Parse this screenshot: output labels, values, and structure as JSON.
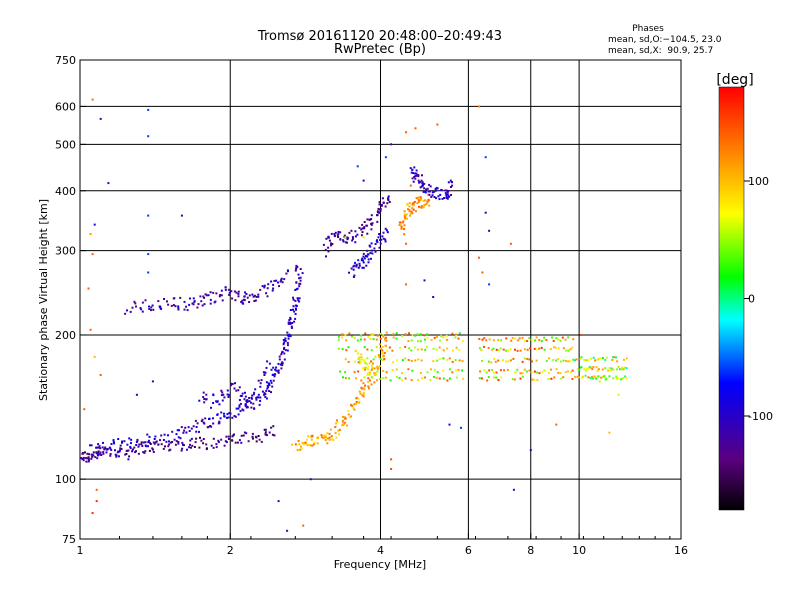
{
  "chart_data": {
    "type": "scatter",
    "title": "Tromsø 20161120 20:48:00–20:49:43",
    "subtitle": "RwPretec (Bp)",
    "xlabel": "Frequency [MHz]",
    "ylabel": "Stationary phase Virtual Height [km]",
    "x_scale": "log2",
    "y_scale": "log",
    "xlim": [
      1,
      16
    ],
    "ylim": [
      75,
      750
    ],
    "x_ticks": [
      1,
      2,
      4,
      6,
      8,
      10,
      16
    ],
    "x_gridlines": [
      2,
      4,
      6,
      8,
      10
    ],
    "y_ticks": [
      75,
      100,
      200,
      300,
      400,
      500,
      600,
      750
    ],
    "y_gridlines": [
      100,
      200,
      300,
      400,
      500,
      600
    ],
    "grid": true,
    "stats": {
      "heading": "Phases",
      "line_o": "mean, sd,O:−104.5, 23.0",
      "line_x": "mean, sd,X:  90.9, 25.7"
    },
    "colorbar": {
      "label": "[deg]",
      "range": [
        -180,
        180
      ],
      "ticks": [
        100,
        0,
        -100
      ],
      "colors": [
        "#000000",
        "#5a0080",
        "#0000ff",
        "#00ffff",
        "#00ff00",
        "#ffff00",
        "#ff8000",
        "#ff0000"
      ]
    },
    "traces": [
      {
        "points": [
          [
            1.0,
            112
          ],
          [
            1.02,
            111
          ],
          [
            1.05,
            112
          ],
          [
            1.08,
            113
          ],
          [
            1.12,
            114
          ],
          [
            1.18,
            115
          ],
          [
            1.22,
            114
          ],
          [
            1.28,
            116
          ],
          [
            1.35,
            117
          ],
          [
            1.42,
            117
          ],
          [
            1.5,
            118
          ],
          [
            1.6,
            118
          ],
          [
            1.7,
            119
          ],
          [
            1.8,
            119
          ],
          [
            1.95,
            120
          ],
          [
            2.05,
            121
          ],
          [
            2.2,
            122
          ],
          [
            2.35,
            124
          ],
          [
            2.45,
            127
          ]
        ],
        "phase": -130
      },
      {
        "points": [
          [
            1.05,
            115
          ],
          [
            1.12,
            116
          ],
          [
            1.2,
            118
          ],
          [
            1.3,
            120
          ],
          [
            1.4,
            121
          ],
          [
            1.55,
            124
          ],
          [
            1.65,
            127
          ],
          [
            1.75,
            130
          ],
          [
            1.85,
            133
          ],
          [
            1.95,
            135
          ],
          [
            2.05,
            138
          ],
          [
            2.15,
            142
          ],
          [
            2.25,
            146
          ],
          [
            2.35,
            150
          ],
          [
            2.4,
            158
          ],
          [
            2.45,
            165
          ],
          [
            2.5,
            172
          ],
          [
            2.55,
            180
          ],
          [
            2.58,
            190
          ],
          [
            2.62,
            200
          ],
          [
            2.66,
            215
          ],
          [
            2.7,
            230
          ],
          [
            2.72,
            245
          ],
          [
            2.74,
            265
          ],
          [
            2.76,
            280
          ]
        ],
        "phase": -100
      },
      {
        "points": [
          [
            1.75,
            150
          ],
          [
            1.85,
            145
          ],
          [
            1.95,
            150
          ],
          [
            2.05,
            155
          ],
          [
            2.12,
            148
          ],
          [
            2.2,
            140
          ],
          [
            2.3,
            160
          ],
          [
            2.4,
            175
          ]
        ],
        "phase": -110
      },
      {
        "points": [
          [
            1.25,
            228
          ],
          [
            1.35,
            230
          ],
          [
            1.45,
            232
          ],
          [
            1.55,
            233
          ],
          [
            1.65,
            232
          ],
          [
            1.75,
            235
          ],
          [
            1.85,
            240
          ],
          [
            1.95,
            245
          ],
          [
            2.05,
            243
          ],
          [
            2.15,
            238
          ],
          [
            2.25,
            240
          ],
          [
            2.35,
            248
          ],
          [
            2.5,
            258
          ],
          [
            2.6,
            268
          ]
        ],
        "phase": -115
      },
      {
        "points": [
          [
            2.7,
            118
          ],
          [
            2.8,
            119
          ],
          [
            2.9,
            120
          ],
          [
            3.0,
            121
          ],
          [
            3.1,
            122
          ],
          [
            3.2,
            124
          ],
          [
            3.3,
            128
          ],
          [
            3.4,
            133
          ],
          [
            3.5,
            140
          ],
          [
            3.6,
            146
          ],
          [
            3.7,
            152
          ],
          [
            3.8,
            160
          ],
          [
            3.9,
            170
          ],
          [
            4.0,
            180
          ],
          [
            4.05,
            190
          ],
          [
            4.1,
            200
          ]
        ],
        "phase": 110
      },
      {
        "points": [
          [
            3.1,
            300
          ],
          [
            3.2,
            315
          ],
          [
            3.3,
            322
          ],
          [
            3.4,
            318
          ],
          [
            3.55,
            322
          ],
          [
            3.7,
            330
          ],
          [
            3.85,
            345
          ],
          [
            3.95,
            360
          ],
          [
            4.05,
            375
          ],
          [
            4.15,
            380
          ]
        ],
        "phase": -125
      },
      {
        "points": [
          [
            3.5,
            270
          ],
          [
            3.6,
            278
          ],
          [
            3.7,
            286
          ],
          [
            3.8,
            295
          ],
          [
            3.9,
            305
          ],
          [
            4.0,
            315
          ],
          [
            4.1,
            330
          ]
        ],
        "phase": -95
      },
      {
        "points": [
          [
            4.4,
            330
          ],
          [
            4.45,
            345
          ],
          [
            4.5,
            360
          ],
          [
            4.6,
            370
          ],
          [
            4.7,
            375
          ],
          [
            4.8,
            378
          ],
          [
            4.9,
            380
          ],
          [
            5.0,
            383
          ]
        ],
        "phase": 120
      },
      {
        "points": [
          [
            4.6,
            440
          ],
          [
            4.7,
            430
          ],
          [
            4.8,
            420
          ],
          [
            4.9,
            410
          ],
          [
            5.0,
            400
          ],
          [
            5.2,
            395
          ],
          [
            5.4,
            390
          ],
          [
            5.5,
            400
          ],
          [
            5.6,
            420
          ]
        ],
        "phase": -105
      },
      {
        "points": [
          [
            3.6,
            180
          ],
          [
            3.7,
            175
          ],
          [
            3.8,
            168
          ],
          [
            3.9,
            165
          ]
        ],
        "phase": 70
      }
    ],
    "bands": [
      {
        "x_range": [
          3.3,
          5.9
        ],
        "heights": [
          162,
          168,
          177,
          187,
          196,
          200
        ],
        "phase": 80
      },
      {
        "x_range": [
          6.3,
          9.8
        ],
        "heights": [
          162,
          168,
          177,
          187,
          196
        ],
        "phase": 95
      },
      {
        "x_range": [
          9.8,
          12.5
        ],
        "heights": [
          163,
          170,
          178
        ],
        "phase": 60
      }
    ],
    "scatter_points": [
      [
        1.06,
        620,
        135
      ],
      [
        1.1,
        565,
        -110
      ],
      [
        1.37,
        590,
        -60
      ],
      [
        1.37,
        520,
        -60
      ],
      [
        1.14,
        415,
        -100
      ],
      [
        1.07,
        340,
        -90
      ],
      [
        1.05,
        325,
        115
      ],
      [
        1.37,
        355,
        -60
      ],
      [
        1.37,
        295,
        -60
      ],
      [
        1.6,
        355,
        -90
      ],
      [
        1.06,
        295,
        140
      ],
      [
        1.04,
        250,
        140
      ],
      [
        1.37,
        270,
        -60
      ],
      [
        1.05,
        205,
        140
      ],
      [
        1.07,
        180,
        100
      ],
      [
        1.1,
        165,
        140
      ],
      [
        1.4,
        160,
        -110
      ],
      [
        1.08,
        95,
        140
      ],
      [
        1.08,
        90,
        160
      ],
      [
        1.06,
        85,
        160
      ],
      [
        1.25,
        110,
        -100
      ],
      [
        2.6,
        78,
        -120
      ],
      [
        3.7,
        420,
        -80
      ],
      [
        3.6,
        450,
        -60
      ],
      [
        4.5,
        530,
        140
      ],
      [
        4.7,
        540,
        140
      ],
      [
        5.2,
        550,
        140
      ],
      [
        6.3,
        600,
        130
      ],
      [
        6.5,
        470,
        -60
      ],
      [
        6.6,
        330,
        -90
      ],
      [
        6.5,
        360,
        -100
      ],
      [
        7.3,
        310,
        140
      ],
      [
        6.3,
        290,
        140
      ],
      [
        6.4,
        270,
        140
      ],
      [
        7.4,
        95,
        -110
      ],
      [
        8.0,
        115,
        -100
      ],
      [
        9.0,
        130,
        140
      ],
      [
        10.1,
        200,
        150
      ],
      [
        11.5,
        125,
        100
      ],
      [
        11.0,
        160,
        60
      ],
      [
        12.0,
        150,
        60
      ],
      [
        4.2,
        110,
        150
      ],
      [
        4.2,
        105,
        150
      ],
      [
        5.5,
        130,
        -90
      ],
      [
        5.8,
        128,
        -60
      ],
      [
        3.4,
        320,
        60
      ],
      [
        3.7,
        320,
        60
      ],
      [
        4.5,
        310,
        140
      ],
      [
        4.5,
        255,
        140
      ],
      [
        4.9,
        260,
        -90
      ],
      [
        5.1,
        240,
        -90
      ],
      [
        4.2,
        500,
        -110
      ],
      [
        4.1,
        470,
        -60
      ],
      [
        4.6,
        410,
        140
      ],
      [
        6.6,
        255,
        -60
      ],
      [
        2.8,
        80,
        140
      ],
      [
        2.5,
        90,
        -110
      ],
      [
        2.9,
        100,
        -110
      ],
      [
        1.02,
        140,
        140
      ],
      [
        1.3,
        150,
        -100
      ]
    ]
  }
}
